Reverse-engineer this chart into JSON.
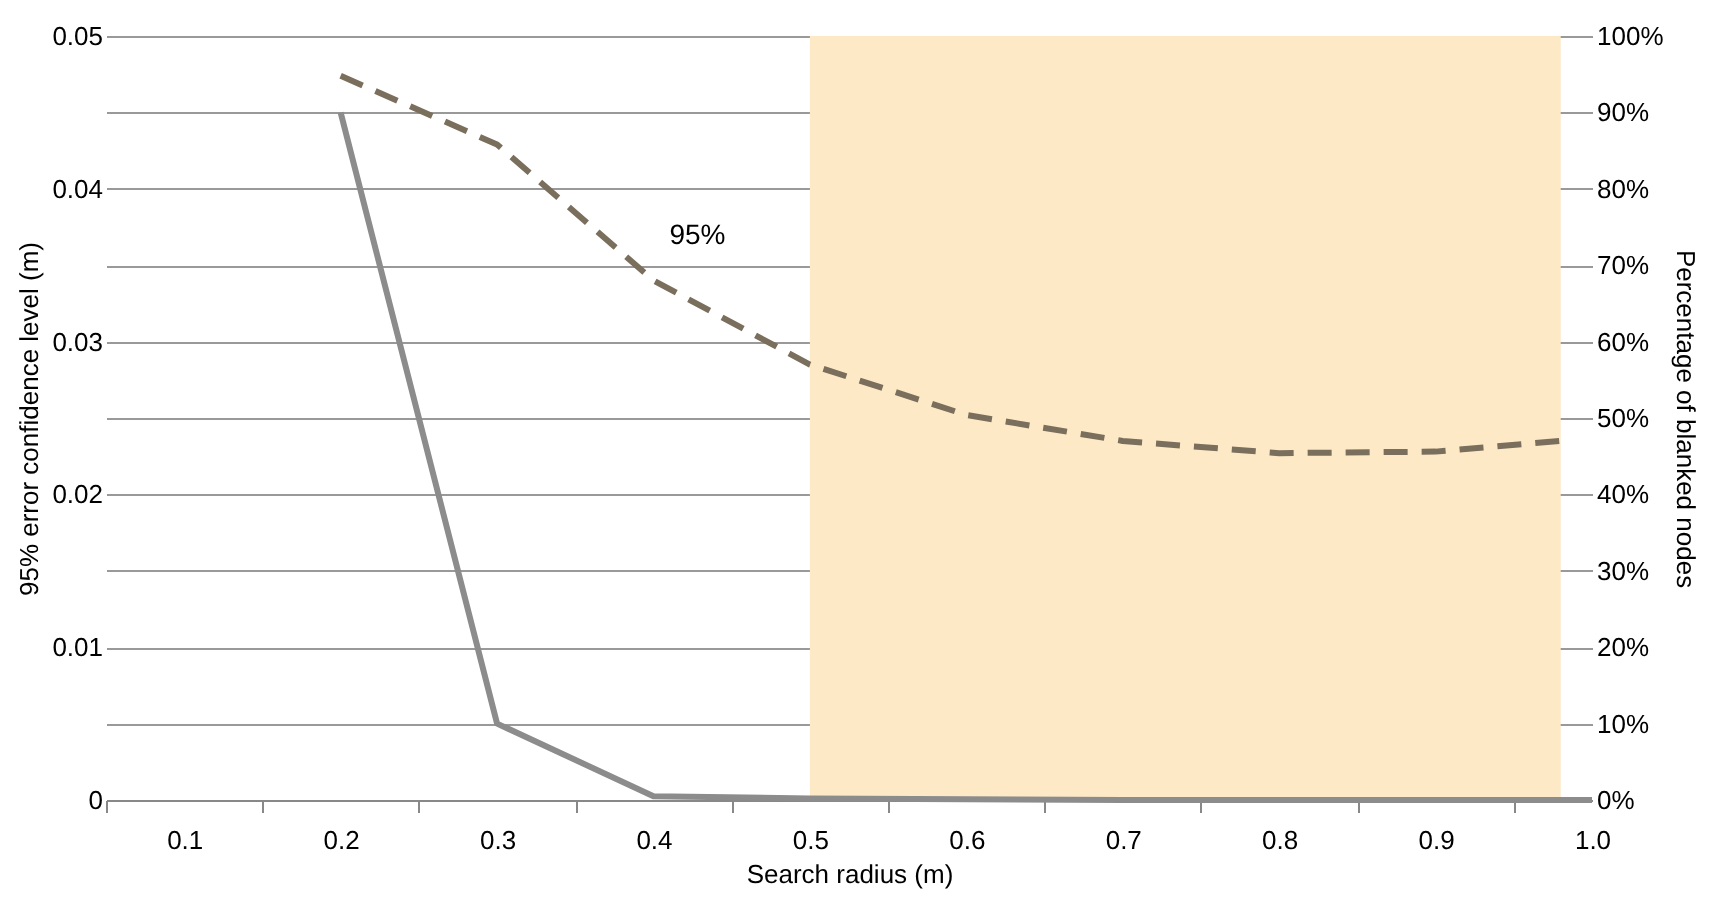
{
  "chart_data": {
    "type": "line",
    "xlabel": "Search radius (m)",
    "ylabel": "95% error confidence level (m)",
    "y2label": "Percentage of blanked nodes",
    "xlim": [
      0.05,
      1.0
    ],
    "xticks": [
      {
        "value": 0.05,
        "label": null
      },
      0.1,
      {
        "value": 0.15,
        "label": null
      },
      0.2,
      {
        "value": 0.25,
        "label": null
      },
      0.3,
      {
        "value": 0.35,
        "label": null
      },
      0.4,
      {
        "value": 0.45,
        "label": null
      },
      0.5,
      {
        "value": 0.55,
        "label": null
      },
      0.6,
      {
        "value": 0.65,
        "label": null
      },
      0.7,
      {
        "value": 0.75,
        "label": null
      },
      0.8,
      {
        "value": 0.85,
        "label": null
      },
      0.9,
      {
        "value": 0.95,
        "label": null
      },
      {
        "value": 1.0,
        "label": "1.0"
      }
    ],
    "ylim": [
      0,
      0.05
    ],
    "yticks": [
      0,
      {
        "value": 0.005,
        "label": null
      },
      0.01,
      {
        "value": 0.015,
        "label": null
      },
      0.02,
      {
        "value": 0.025,
        "label": null
      },
      0.03,
      {
        "value": 0.035,
        "label": null
      },
      0.04,
      {
        "value": 0.045,
        "label": null
      },
      0.05
    ],
    "y2lim": [
      0,
      100
    ],
    "y2ticks": [
      {
        "value": 0,
        "label": "0%"
      },
      {
        "value": 10,
        "label": "10%"
      },
      {
        "value": 20,
        "label": "20%"
      },
      {
        "value": 30,
        "label": "30%"
      },
      {
        "value": 40,
        "label": "40%"
      },
      {
        "value": 50,
        "label": "50%"
      },
      {
        "value": 60,
        "label": "60%"
      },
      {
        "value": 70,
        "label": "70%"
      },
      {
        "value": 80,
        "label": "80%"
      },
      {
        "value": 90,
        "label": "90%"
      },
      {
        "value": 100,
        "label": "100%"
      }
    ],
    "series": [
      {
        "name": "95%",
        "color": "#7a6e5c",
        "line_style": "dashed",
        "x": [
          0.2,
          0.3,
          0.4,
          0.5,
          0.6,
          0.7,
          0.8,
          0.9,
          0.98
        ],
        "values": [
          0.0474,
          0.0429,
          0.034,
          0.0285,
          0.0252,
          0.0235,
          0.0227,
          0.0228,
          0.0235
        ]
      },
      {
        "color": "#8c8c8c",
        "line_style": "solid",
        "axis": "y2",
        "x": [
          0.2,
          0.3,
          0.4,
          0.5,
          0.6,
          0.7,
          0.8,
          0.9,
          1.0
        ],
        "values": [
          90,
          10,
          0.5,
          0.2,
          0.1,
          0,
          0,
          0,
          0
        ]
      }
    ],
    "bands": [
      {
        "axis": "x",
        "from": 0.5,
        "to": 0.98,
        "color": "#fde9c6"
      }
    ],
    "grid": "y",
    "marker": "none"
  }
}
